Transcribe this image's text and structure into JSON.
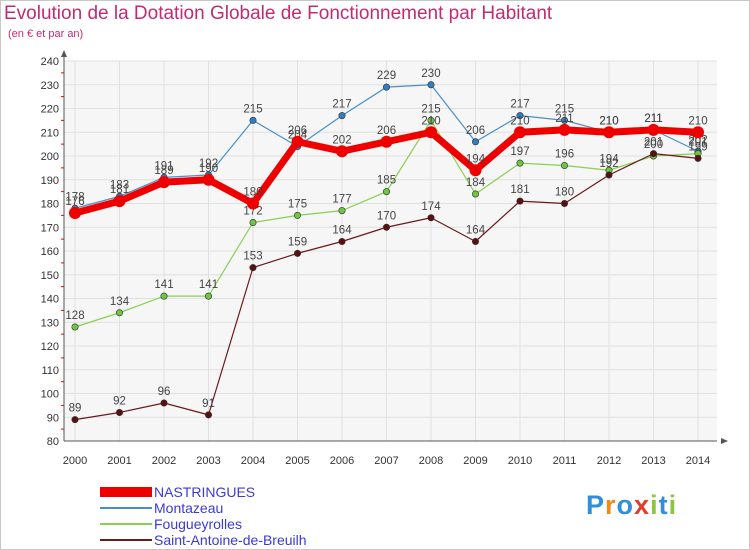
{
  "header": {
    "title": "Evolution de la Dotation Globale de Fonctionnement par Habitant",
    "subtitle": "(en € et par an)"
  },
  "brand": {
    "letters": [
      "P",
      "r",
      "o",
      "x",
      "i",
      "t",
      "i"
    ],
    "colors": [
      "#2f8fd8",
      "#f08a1c",
      "#2f8fd8",
      "#e63a2a",
      "#8cc63e",
      "#2f8fd8",
      "#8cc63e"
    ]
  },
  "chart_data": {
    "type": "line",
    "title": "Evolution de la Dotation Globale de Fonctionnement par Habitant",
    "subtitle": "(en € et par an)",
    "x": [
      "2000",
      "2001",
      "2002",
      "2003",
      "2004",
      "2005",
      "2006",
      "2007",
      "2008",
      "2009",
      "2010",
      "2011",
      "2012",
      "2013",
      "2014"
    ],
    "yticks": [
      80,
      90,
      100,
      110,
      120,
      130,
      140,
      150,
      160,
      170,
      180,
      190,
      200,
      210,
      220,
      230,
      240
    ],
    "ylim": [
      80,
      240
    ],
    "grid": true,
    "legend_position": "bottom-left",
    "series": [
      {
        "name": "Montazeau",
        "color": "#4a90c8",
        "values": [
          178,
          183,
          191,
          192,
          215,
          204,
          217,
          229,
          230,
          206,
          217,
          215,
          210,
          211,
          202
        ]
      },
      {
        "name": "Fougueyrolles",
        "color": "#88d050",
        "values": [
          128,
          134,
          141,
          141,
          172,
          175,
          177,
          185,
          215,
          184,
          197,
          196,
          194,
          200,
          201
        ]
      },
      {
        "name": "Saint-Antoine-de-Breuilh",
        "color": "#6b1a1a",
        "values": [
          89,
          92,
          96,
          91,
          153,
          159,
          164,
          170,
          174,
          164,
          181,
          180,
          192,
          201,
          199
        ]
      },
      {
        "name": "NASTRINGUES",
        "color": "#ee0000",
        "values": [
          176,
          181,
          189,
          190,
          180,
          206,
          202,
          206,
          210,
          194,
          210,
          211,
          210,
          211,
          210
        ]
      }
    ],
    "legend_order": [
      "NASTRINGUES",
      "Montazeau",
      "Fougueyrolles",
      "Saint-Antoine-de-Breuilh"
    ]
  }
}
